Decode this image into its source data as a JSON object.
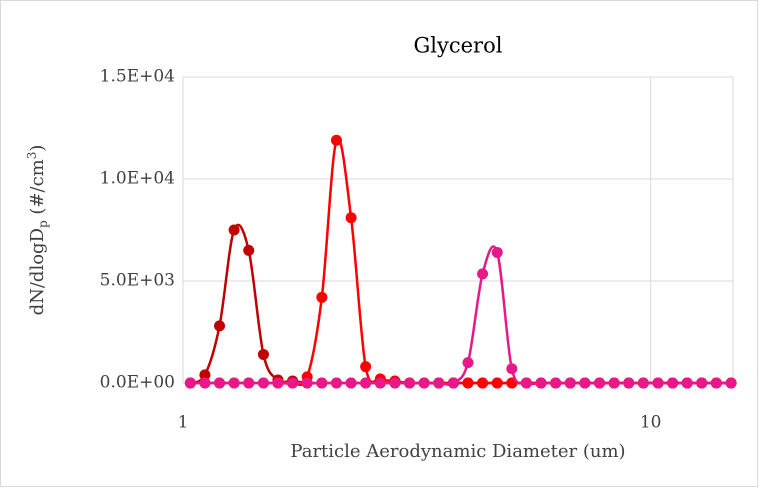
{
  "chart_data": {
    "type": "scatter-smooth",
    "title": "Glycerol",
    "xlabel": "Particle Aerodynamic Diameter (um)",
    "ylabel": [
      "dN/dlogD",
      "p",
      " (#/cm",
      "3",
      ")"
    ],
    "x": [
      1.037,
      1.114,
      1.197,
      1.286,
      1.382,
      1.486,
      1.596,
      1.715,
      1.843,
      1.981,
      2.129,
      2.288,
      2.458,
      2.642,
      2.839,
      3.051,
      3.278,
      3.523,
      3.786,
      4.068,
      4.371,
      4.698,
      5.048,
      5.425,
      5.829,
      6.264,
      6.732,
      7.234,
      7.774,
      8.354,
      8.977,
      9.647,
      10.37,
      11.14,
      11.97,
      12.86,
      13.82,
      14.86
    ],
    "series": [
      {
        "color": "#c00000",
        "values": [
          0,
          400,
          2800,
          7500,
          6500,
          1400,
          150,
          100,
          0,
          0,
          0,
          0,
          0,
          0,
          0,
          0,
          0,
          0,
          0,
          0,
          0,
          0,
          0,
          0,
          0,
          0,
          0,
          0,
          0,
          0,
          0,
          0,
          0,
          0,
          0,
          0,
          0,
          0
        ]
      },
      {
        "color": "#ff0000",
        "values": [
          0,
          0,
          0,
          0,
          0,
          0,
          0,
          0,
          300,
          4200,
          11900,
          8100,
          800,
          200,
          100,
          0,
          0,
          0,
          0,
          0,
          0,
          0,
          0,
          0,
          0,
          0,
          0,
          0,
          0,
          0,
          0,
          0,
          0,
          0,
          0,
          0,
          0,
          0
        ]
      },
      {
        "color": "#e8178a",
        "values": [
          0,
          0,
          0,
          0,
          0,
          0,
          0,
          0,
          0,
          0,
          0,
          0,
          0,
          0,
          0,
          0,
          0,
          0,
          0,
          1000,
          5350,
          6400,
          700,
          0,
          0,
          0,
          0,
          0,
          0,
          0,
          0,
          0,
          0,
          0,
          0,
          0,
          0,
          0
        ]
      }
    ],
    "xscale": "log",
    "xlim": [
      1,
      15
    ],
    "xticks": [
      1,
      10
    ],
    "ylim": [
      0,
      15000
    ],
    "yticks": [
      {
        "value": 0,
        "label": "0.0E+00"
      },
      {
        "value": 5000,
        "label": "5.0E+03"
      },
      {
        "value": 10000,
        "label": "1.0E+04"
      },
      {
        "value": 15000,
        "label": "1.5E+04"
      }
    ],
    "grid": true
  }
}
